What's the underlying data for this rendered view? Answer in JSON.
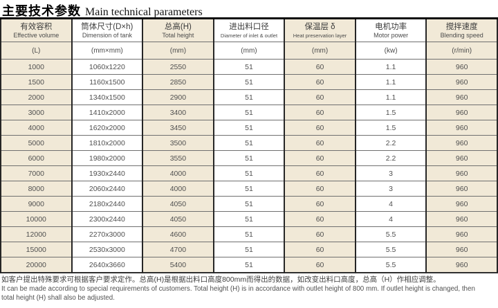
{
  "title": {
    "zh": "主要技术参数",
    "en": "Main technical parameters"
  },
  "table": {
    "columns": [
      {
        "zh": "有效容积",
        "en": "Effective volume",
        "unit": "(L)"
      },
      {
        "zh": "筒体尺寸(D×h)",
        "en": "Dimension of tank",
        "unit": "(mm×mm)"
      },
      {
        "zh": "总高(H)",
        "en": "Total height",
        "unit": "(mm)"
      },
      {
        "zh": "进出料口径",
        "en": "Diameter of inlet & outlet",
        "unit": "(mm)"
      },
      {
        "zh": "保温层 δ",
        "en": "Heat preservation layer",
        "unit": "(mm)"
      },
      {
        "zh": "电机功率",
        "en": "Motor power",
        "unit": "(kw)"
      },
      {
        "zh": "搅拌速度",
        "en": "Blending speed",
        "unit": "(r/min)"
      }
    ],
    "rows": [
      [
        "1000",
        "1060x1220",
        "2550",
        "51",
        "60",
        "1.1",
        "960"
      ],
      [
        "1500",
        "1160x1500",
        "2850",
        "51",
        "60",
        "1.1",
        "960"
      ],
      [
        "2000",
        "1340x1500",
        "2900",
        "51",
        "60",
        "1.1",
        "960"
      ],
      [
        "3000",
        "1410x2000",
        "3400",
        "51",
        "60",
        "1.5",
        "960"
      ],
      [
        "4000",
        "1620x2000",
        "3450",
        "51",
        "60",
        "1.5",
        "960"
      ],
      [
        "5000",
        "1810x2000",
        "3500",
        "51",
        "60",
        "2.2",
        "960"
      ],
      [
        "6000",
        "1980x2000",
        "3550",
        "51",
        "60",
        "2.2",
        "960"
      ],
      [
        "7000",
        "1930x2440",
        "4000",
        "51",
        "60",
        "3",
        "960"
      ],
      [
        "8000",
        "2060x2440",
        "4000",
        "51",
        "60",
        "3",
        "960"
      ],
      [
        "9000",
        "2180x2440",
        "4050",
        "51",
        "60",
        "4",
        "960"
      ],
      [
        "10000",
        "2300x2440",
        "4050",
        "51",
        "60",
        "4",
        "960"
      ],
      [
        "12000",
        "2270x3000",
        "4600",
        "51",
        "60",
        "5.5",
        "960"
      ],
      [
        "15000",
        "2530x3000",
        "4700",
        "51",
        "60",
        "5.5",
        "960"
      ],
      [
        "20000",
        "2640x3660",
        "5400",
        "51",
        "60",
        "5.5",
        "960"
      ]
    ]
  },
  "footer": {
    "zh": "如客户提出特殊要求可根据客户要求定作。总高(H)是根据出料口高度800mm而得出的数据，如改变出料口高度，总高（H）作相应调整。",
    "en_line1": "It can be made according to special requirements of customers. Total height (H) is in accordance with outlet height of 800 mm. If outlet height is changed, then",
    "en_line2": "total height (H) shall also be adjusted."
  },
  "colors": {
    "stripe_beige": "#f1e9d7",
    "stripe_white": "#ffffff",
    "border_dark": "#262626",
    "text_gray": "#4f4f4f"
  }
}
